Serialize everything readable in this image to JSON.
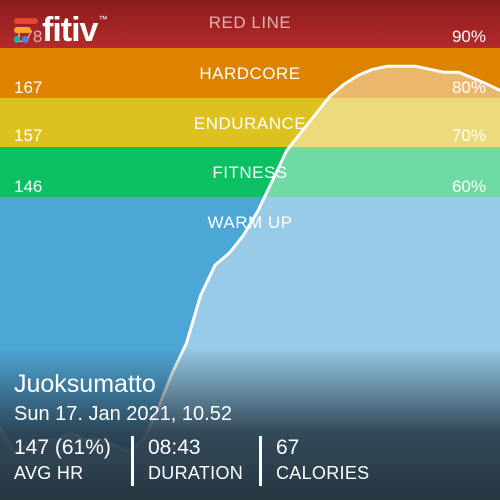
{
  "app": {
    "logo_text": "fitiv",
    "logo_mark": "™"
  },
  "zones": [
    {
      "label": "RED LINE",
      "hr": "178",
      "pct": "90%"
    },
    {
      "label": "HARDCORE",
      "hr": "167",
      "pct": "80%"
    },
    {
      "label": "ENDURANCE",
      "hr": "157",
      "pct": "70%"
    },
    {
      "label": "FITNESS",
      "hr": "146",
      "pct": "60%"
    },
    {
      "label": "WARM UP",
      "hr": "",
      "pct": ""
    }
  ],
  "colors": {
    "red_line": "#b52a2a",
    "hardcore": "#dd8300",
    "endurance": "#ddc21f",
    "fitness": "#0ac063",
    "warm_up": "#4ca6d6"
  },
  "workout": {
    "title": "Juoksumatto",
    "date": "Sun 17. Jan 2021, 10.52",
    "stats": [
      {
        "value": "147 (61%)",
        "label": "AVG HR"
      },
      {
        "value": "08:43",
        "label": "DURATION"
      },
      {
        "value": "67",
        "label": "CALORIES"
      }
    ]
  },
  "chart_data": {
    "type": "area",
    "xlabel": "",
    "ylabel": "",
    "ylim": [
      105,
      188
    ],
    "x": [
      0,
      0.25,
      0.5,
      0.75,
      1,
      1.25,
      1.5,
      1.75,
      2,
      2.25,
      2.5,
      2.75,
      3,
      3.25,
      3.5,
      3.75,
      4,
      4.25,
      4.5,
      4.75,
      5,
      5.25,
      5.5,
      5.75,
      6,
      6.25,
      6.5,
      6.75,
      7,
      7.25,
      7.5,
      7.75,
      8,
      8.25,
      8.5,
      8.72
    ],
    "values": [
      117,
      113,
      114,
      115,
      115,
      116,
      115,
      115,
      114,
      113,
      115,
      120,
      126,
      131,
      139,
      144,
      146,
      149,
      153,
      158,
      163,
      166,
      169,
      172,
      174,
      175.5,
      176.5,
      177,
      177,
      177,
      176.5,
      176,
      176,
      175,
      174,
      173
    ]
  }
}
